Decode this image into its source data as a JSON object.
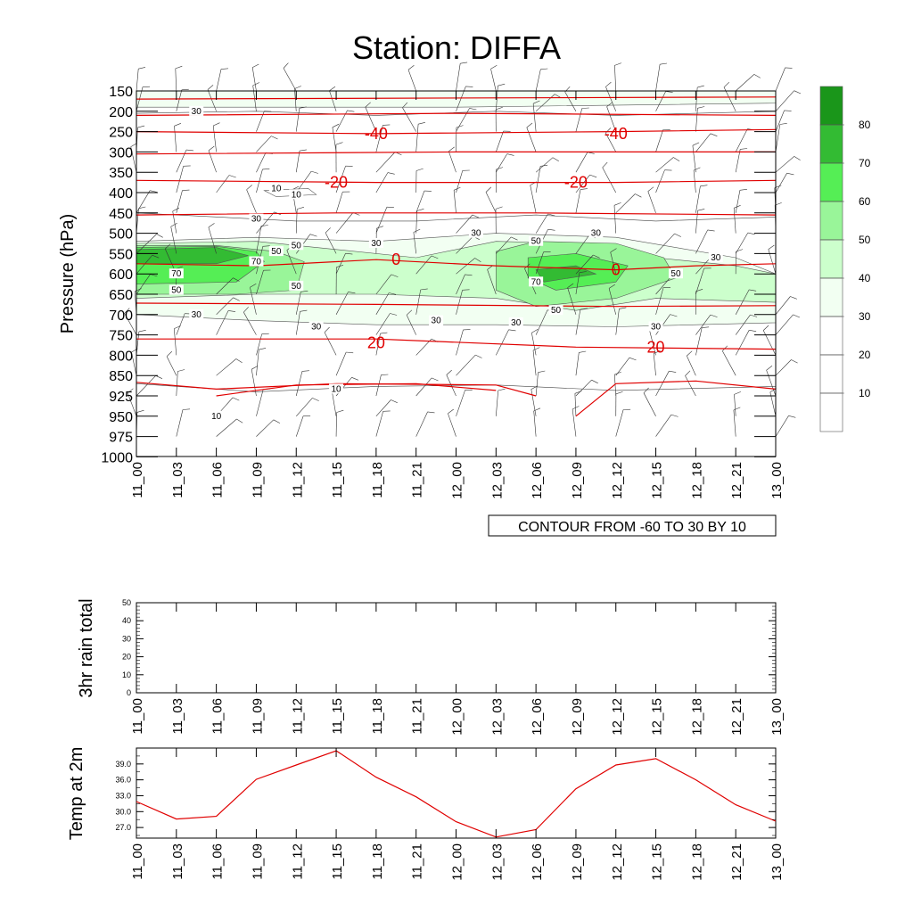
{
  "title": "Station: DIFFA",
  "x_ticks": [
    "11_00",
    "11_03",
    "11_06",
    "11_09",
    "11_12",
    "11_15",
    "11_18",
    "11_21",
    "12_00",
    "12_03",
    "12_06",
    "12_09",
    "12_12",
    "12_15",
    "12_18",
    "12_21",
    "13_00"
  ],
  "colors": {
    "temp_line": "#e00000",
    "levels": [
      "#ffffff",
      "#ffffff",
      "#ffffff",
      "#f2fff2",
      "#ccffcc",
      "#99f599",
      "#55ee55",
      "#33bb33",
      "#1a961a"
    ]
  },
  "chart_data": [
    {
      "type": "heatmap",
      "name": "cross-section",
      "title": "Station: DIFFA",
      "ylabel": "Pressure (hPa)",
      "y_levels": [
        150,
        200,
        250,
        300,
        350,
        400,
        450,
        500,
        550,
        600,
        650,
        700,
        750,
        800,
        850,
        925,
        950,
        975,
        1000
      ],
      "contour_note": "CONTOUR FROM -60 TO 30 BY 10",
      "colorbar_labels": [
        "10",
        "20",
        "30",
        "40",
        "50",
        "60",
        "70",
        "80"
      ],
      "humidity_labels": [
        {
          "x": 1.5,
          "p": 200,
          "text": "30"
        },
        {
          "x": 3.5,
          "p": 390,
          "text": "10"
        },
        {
          "x": 4.0,
          "p": 405,
          "text": "10"
        },
        {
          "x": 3.0,
          "p": 570,
          "text": "70"
        },
        {
          "x": 3.5,
          "p": 545,
          "text": "50"
        },
        {
          "x": 4.0,
          "p": 530,
          "text": "50"
        },
        {
          "x": 1.0,
          "p": 600,
          "text": "70"
        },
        {
          "x": 1.0,
          "p": 640,
          "text": "50"
        },
        {
          "x": 4.0,
          "p": 630,
          "text": "50"
        },
        {
          "x": 3.0,
          "p": 465,
          "text": "30"
        },
        {
          "x": 6.0,
          "p": 525,
          "text": "30"
        },
        {
          "x": 8.5,
          "p": 500,
          "text": "30"
        },
        {
          "x": 10.0,
          "p": 520,
          "text": "50"
        },
        {
          "x": 11.5,
          "p": 500,
          "text": "30"
        },
        {
          "x": 14.5,
          "p": 560,
          "text": "30"
        },
        {
          "x": 13.5,
          "p": 600,
          "text": "50"
        },
        {
          "x": 10.0,
          "p": 620,
          "text": "70"
        },
        {
          "x": 10.5,
          "p": 690,
          "text": "50"
        },
        {
          "x": 1.5,
          "p": 700,
          "text": "30"
        },
        {
          "x": 4.5,
          "p": 730,
          "text": "30"
        },
        {
          "x": 7.5,
          "p": 715,
          "text": "30"
        },
        {
          "x": 9.5,
          "p": 720,
          "text": "30"
        },
        {
          "x": 13.0,
          "p": 730,
          "text": "30"
        },
        {
          "x": 5.0,
          "p": 900,
          "text": "10"
        },
        {
          "x": 2.0,
          "p": 950,
          "text": "10"
        }
      ],
      "temperature_labels": [
        {
          "x": 6.0,
          "p": 255,
          "text": "-40"
        },
        {
          "x": 12.0,
          "p": 255,
          "text": "-40"
        },
        {
          "x": 5.0,
          "p": 375,
          "text": "-20"
        },
        {
          "x": 11.0,
          "p": 375,
          "text": "-20"
        },
        {
          "x": 6.5,
          "p": 565,
          "text": "0"
        },
        {
          "x": 12.0,
          "p": 590,
          "text": "0"
        },
        {
          "x": 6.0,
          "p": 770,
          "text": "20"
        },
        {
          "x": 13.0,
          "p": 780,
          "text": "20"
        }
      ]
    },
    {
      "type": "bar",
      "name": "rain",
      "ylabel": "3hr rain total",
      "ylim": [
        0,
        50
      ],
      "yticks": [
        "0",
        "10",
        "20",
        "30",
        "40",
        "50"
      ],
      "values": [
        0,
        0,
        0,
        0,
        0,
        0,
        0,
        0,
        0,
        0,
        0,
        0,
        0,
        0,
        0,
        0,
        0
      ]
    },
    {
      "type": "line",
      "name": "temperature",
      "ylabel": "Temp at 2m",
      "ylim": [
        25.0,
        42.0
      ],
      "yticks": [
        "27.0",
        "30.0",
        "33.0",
        "36.0",
        "39.0"
      ],
      "values": [
        31.9,
        28.6,
        29.1,
        36.1,
        38.8,
        41.5,
        36.5,
        32.8,
        28.1,
        25.2,
        26.6,
        34.3,
        38.8,
        40.0,
        36.0,
        31.3,
        28.2
      ]
    }
  ]
}
